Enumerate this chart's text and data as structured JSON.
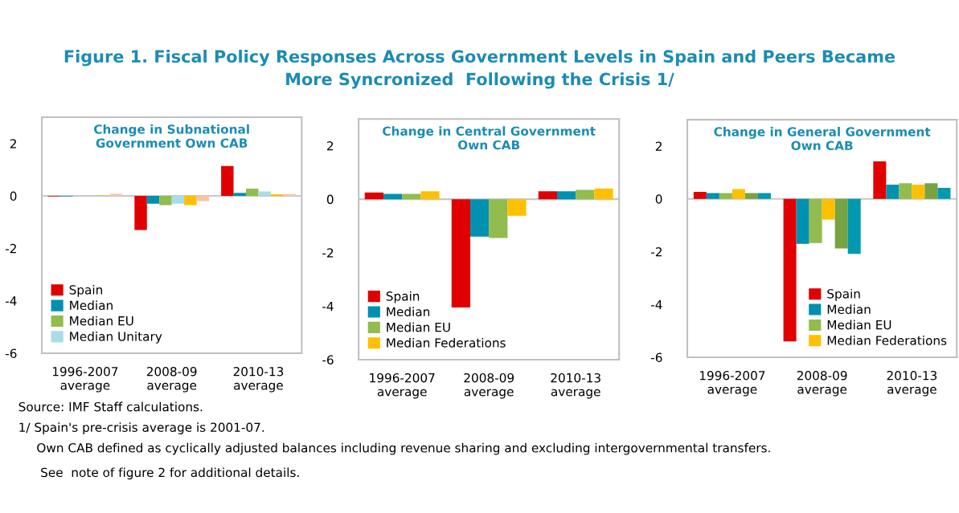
{
  "chart_data": [
    {
      "type": "bar",
      "title": "Change in Subnational\nGovernment Own CAB",
      "categories": [
        "1996-2007\naverage",
        "2008-09\naverage",
        "2010-13\naverage"
      ],
      "ylim": [
        -6,
        3
      ],
      "yticks": [
        -6,
        -4,
        -2,
        0,
        2
      ],
      "grid": false,
      "legend": "bottom left",
      "ref_lines": [
        {
          "axis": "y",
          "value": 0,
          "color": "#c8c8c8"
        }
      ],
      "series": [
        {
          "name": "Spain",
          "color": "#e00000",
          "values": [
            -0.02,
            -1.3,
            1.14
          ]
        },
        {
          "name": "Median",
          "color": "#0090b0",
          "values": [
            -0.02,
            -0.3,
            0.12
          ]
        },
        {
          "name": "Median EU",
          "color": "#92bc4e",
          "values": [
            0,
            -0.35,
            0.28
          ]
        },
        {
          "name": "Median Unitary",
          "color": "#a8dde8",
          "values": [
            0,
            -0.3,
            0.17
          ]
        },
        {
          "color": "#ffc000",
          "values": [
            0.02,
            -0.35,
            0.06
          ]
        },
        {
          "color": "#fbc4a0",
          "values": [
            0.08,
            -0.2,
            0.07
          ]
        }
      ],
      "annotations": [
        "Figure 1. Fiscal Policy Responses Across Government Levels in Spain and Peers Became\nMore Syncronized  Following the Crisis 1/",
        "Source: IMF Staff calculations.",
        "1/ Spain's pre-crisis average is 2001-07.",
        "Own CAB defined as cyclically adjusted balances including revenue sharing and excluding intergovernmental transfers.",
        "See  note of figure 2 for additional details."
      ]
    },
    {
      "type": "bar",
      "title": "Change in Central Government\nOwn CAB",
      "categories": [
        "1996-2007\naverage",
        "2008-09\naverage",
        "2010-13\naverage"
      ],
      "ylim": [
        -6,
        3
      ],
      "yticks": [
        -6,
        -4,
        -2,
        0,
        2
      ],
      "grid": false,
      "legend": "bottom left",
      "ref_lines": [
        {
          "axis": "y",
          "value": 0,
          "color": "#c8c8c8"
        }
      ],
      "series": [
        {
          "name": "Spain",
          "color": "#e00000",
          "values": [
            0.25,
            -4.05,
            0.3
          ]
        },
        {
          "name": "Median",
          "color": "#0090b0",
          "values": [
            0.2,
            -1.4,
            0.3
          ]
        },
        {
          "name": "Median EU",
          "color": "#92bc4e",
          "values": [
            0.2,
            -1.45,
            0.35
          ]
        },
        {
          "name": "Median Federations",
          "color": "#ffc000",
          "values": [
            0.3,
            -0.62,
            0.4
          ]
        }
      ]
    },
    {
      "type": "bar",
      "title": "Change in General Government\nOwn CAB",
      "categories": [
        "1996-2007\naverage",
        "2008-09\naverage",
        "2010-13\naverage"
      ],
      "ylim": [
        -6,
        3
      ],
      "yticks": [
        -6,
        -4,
        -2,
        0,
        2
      ],
      "grid": false,
      "legend": "bottom right",
      "ref_lines": [
        {
          "axis": "y",
          "value": 0,
          "color": "#c8c8c8"
        }
      ],
      "series": [
        {
          "name": "Spain",
          "color": "#e00000",
          "values": [
            0.27,
            -5.4,
            1.42
          ]
        },
        {
          "name": "Median",
          "color": "#0090b0",
          "values": [
            0.22,
            -1.7,
            0.54
          ]
        },
        {
          "name": "Median EU",
          "color": "#92bc4e",
          "values": [
            0.22,
            -1.67,
            0.59
          ]
        },
        {
          "name": "Median Federations",
          "color": "#ffc000",
          "values": [
            0.37,
            -0.78,
            0.54
          ]
        },
        {
          "color": "#77a343",
          "values": [
            0.22,
            -1.88,
            0.59
          ]
        },
        {
          "color": "#0099b0",
          "values": [
            0.22,
            -2.08,
            0.42
          ]
        }
      ]
    }
  ]
}
